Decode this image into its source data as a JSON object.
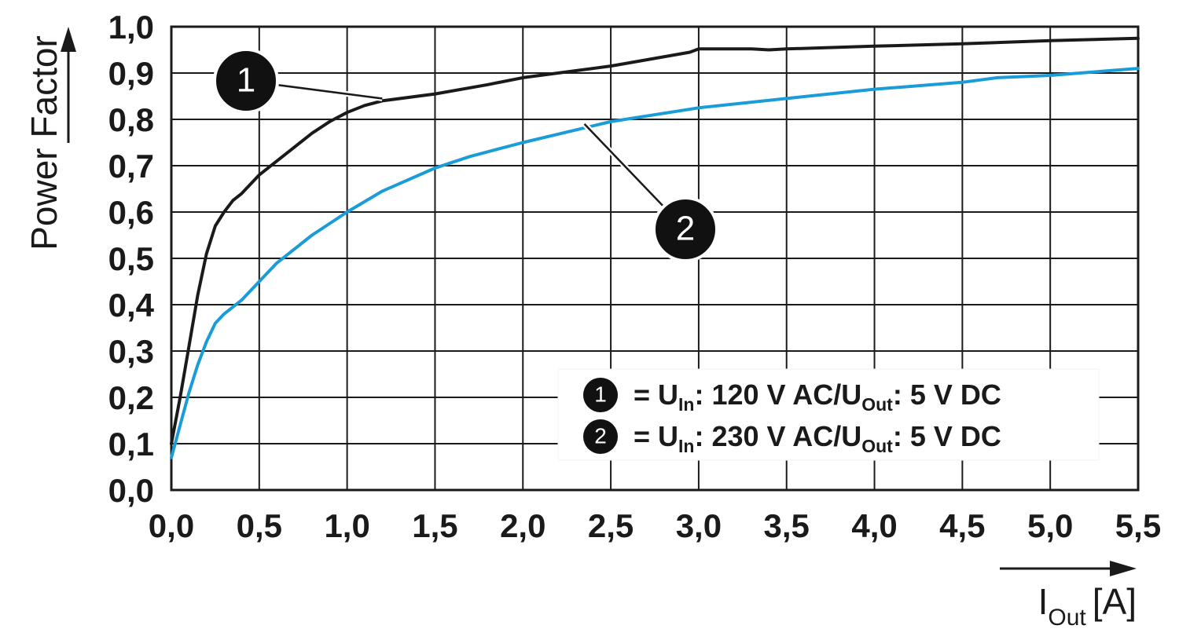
{
  "chart_data": {
    "type": "line",
    "ylabel": "Power Factor",
    "xlabel": {
      "main": "I",
      "sub": "Out",
      "unit": "[A]"
    },
    "xlim": [
      0,
      5.5
    ],
    "ylim": [
      0,
      1.0
    ],
    "x_ticks": [
      "0,0",
      "0,5",
      "1,0",
      "1,5",
      "2,0",
      "2,5",
      "3,0",
      "3,5",
      "4,0",
      "4,5",
      "5,0",
      "5,5"
    ],
    "y_ticks": [
      "0,0",
      "0,1",
      "0,2",
      "0,3",
      "0,4",
      "0,5",
      "0,6",
      "0,7",
      "0,8",
      "0,9",
      "1,0"
    ],
    "grid": true,
    "series": [
      {
        "name": "1",
        "color": "#1a1a1a",
        "x": [
          0.0,
          0.05,
          0.1,
          0.15,
          0.2,
          0.25,
          0.3,
          0.35,
          0.4,
          0.5,
          0.6,
          0.7,
          0.8,
          0.9,
          1.0,
          1.1,
          1.2,
          1.5,
          1.8,
          2.0,
          2.2,
          2.5,
          2.8,
          2.95,
          3.0,
          3.3,
          3.4,
          3.5,
          4.0,
          4.5,
          5.0,
          5.5
        ],
        "y": [
          0.1,
          0.2,
          0.31,
          0.42,
          0.51,
          0.57,
          0.6,
          0.625,
          0.64,
          0.68,
          0.71,
          0.74,
          0.77,
          0.795,
          0.815,
          0.83,
          0.84,
          0.855,
          0.875,
          0.89,
          0.9,
          0.915,
          0.935,
          0.945,
          0.952,
          0.952,
          0.95,
          0.952,
          0.958,
          0.963,
          0.97,
          0.975
        ]
      },
      {
        "name": "2",
        "color": "#1a9cd8",
        "x": [
          0.0,
          0.05,
          0.1,
          0.15,
          0.2,
          0.25,
          0.3,
          0.4,
          0.5,
          0.6,
          0.8,
          1.0,
          1.2,
          1.5,
          1.7,
          2.0,
          2.5,
          3.0,
          3.5,
          4.0,
          4.5,
          4.7,
          5.0,
          5.5
        ],
        "y": [
          0.07,
          0.14,
          0.21,
          0.27,
          0.32,
          0.36,
          0.38,
          0.41,
          0.45,
          0.49,
          0.55,
          0.6,
          0.645,
          0.695,
          0.72,
          0.75,
          0.795,
          0.825,
          0.845,
          0.865,
          0.88,
          0.89,
          0.895,
          0.91
        ]
      }
    ],
    "callouts": [
      {
        "label": "1",
        "target": [
          1.2,
          0.845
        ]
      },
      {
        "label": "2",
        "target": [
          2.35,
          0.79
        ]
      }
    ],
    "legend": {
      "position": "bottom-right",
      "entries": [
        {
          "badge": "1",
          "prefix": "= U",
          "in_sub": "In",
          "mid": ": 120 V AC/U",
          "out_sub": "Out",
          "suffix": ": 5 V DC"
        },
        {
          "badge": "2",
          "prefix": "= U",
          "in_sub": "In",
          "mid": ": 230 V AC/U",
          "out_sub": "Out",
          "suffix": ": 5 V DC"
        }
      ]
    }
  }
}
